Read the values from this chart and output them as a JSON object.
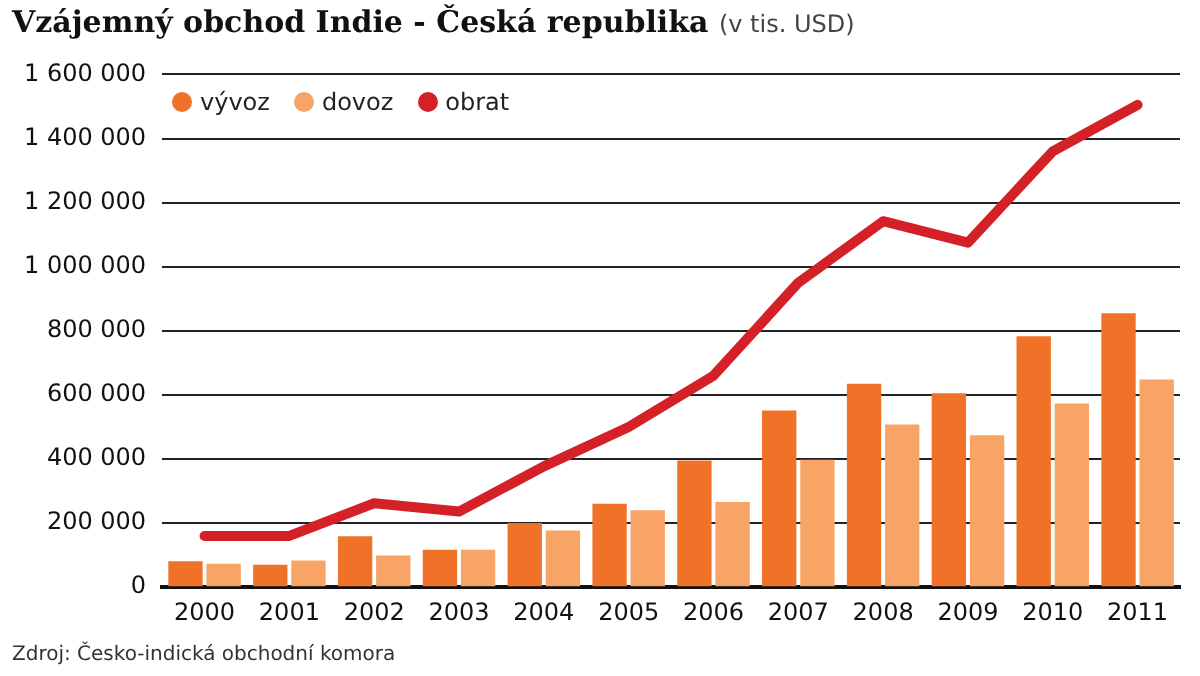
{
  "chart_data": {
    "type": "bar",
    "title": "Vzájemný obchod Indie - Česká republika",
    "subtitle": "(v tis. USD)",
    "categories": [
      "2000",
      "2001",
      "2002",
      "2003",
      "2004",
      "2005",
      "2006",
      "2007",
      "2008",
      "2009",
      "2010",
      "2011"
    ],
    "series": [
      {
        "name": "vývoz",
        "color": "#f07228",
        "values": [
          81000,
          70000,
          159000,
          117000,
          200000,
          260000,
          395000,
          551000,
          635000,
          605000,
          783000,
          855000
        ]
      },
      {
        "name": "dovoz",
        "color": "#f7a466",
        "values": [
          73000,
          83000,
          99000,
          117000,
          177000,
          240000,
          266000,
          398000,
          508000,
          474000,
          573000,
          648000
        ]
      },
      {
        "name": "obrat",
        "color": "#d42027",
        "type": "line",
        "values": [
          160000,
          160000,
          262000,
          236000,
          377000,
          500000,
          660000,
          950000,
          1142000,
          1075000,
          1360000,
          1505000
        ]
      }
    ],
    "ylim": [
      0,
      1600000
    ],
    "yticks": [
      0,
      {
        "value": 200000,
        "label": "200 000"
      },
      {
        "value": 400000,
        "label": "400 000"
      },
      {
        "value": 600000,
        "label": "600 000"
      },
      {
        "value": 800000,
        "label": "800 000"
      },
      {
        "value": 1000000,
        "label": "1 000 000"
      },
      {
        "value": 1200000,
        "label": "1 200 000"
      },
      {
        "value": 1400000,
        "label": "1 400 000"
      },
      {
        "value": 1600000,
        "label": "1 600 000"
      }
    ],
    "grid": "y",
    "legend": "top left",
    "marker": "none",
    "annotations": [
      "Zdroj: Česko-indická obchodní komora"
    ]
  }
}
